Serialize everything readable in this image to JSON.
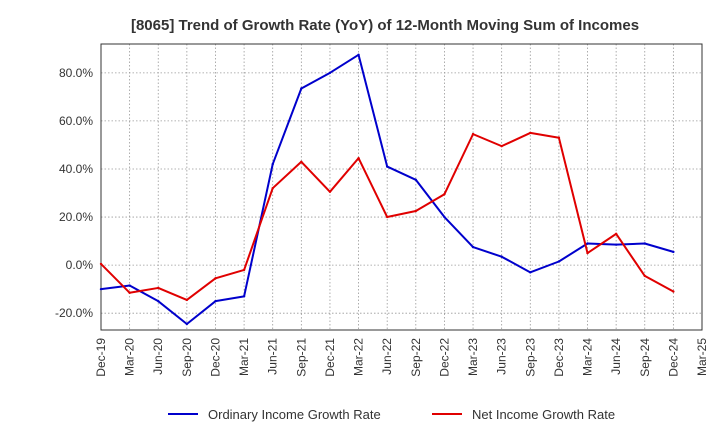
{
  "chart_data": {
    "type": "line",
    "title": "[8065]  Trend of Growth Rate (YoY) of 12-Month Moving Sum of Incomes",
    "xlabel": "",
    "ylabel": "",
    "x": [
      "Dec-19",
      "Mar-20",
      "Jun-20",
      "Sep-20",
      "Dec-20",
      "Mar-21",
      "Jun-21",
      "Sep-21",
      "Dec-21",
      "Mar-22",
      "Jun-22",
      "Sep-22",
      "Dec-22",
      "Mar-23",
      "Jun-23",
      "Sep-23",
      "Dec-23",
      "Mar-24",
      "Jun-24",
      "Sep-24",
      "Dec-24",
      "Mar-25"
    ],
    "yticks": [
      -20,
      0,
      20,
      40,
      60,
      80
    ],
    "ytick_labels": [
      "-20.0%",
      "0.0%",
      "20.0%",
      "40.0%",
      "60.0%",
      "80.0%"
    ],
    "ylim": [
      -27,
      92
    ],
    "grid": true,
    "legend_position": "bottom",
    "series": [
      {
        "name": "Ordinary Income Growth Rate",
        "color": "#0000cc",
        "values": [
          -10,
          -8.5,
          -15,
          -24.5,
          -15,
          -13,
          42,
          73.5,
          80,
          87.5,
          41,
          35.5,
          20,
          7.5,
          3.5,
          -3,
          1.5,
          9,
          8.5,
          9,
          5.5,
          null
        ]
      },
      {
        "name": "Net Income Growth Rate",
        "color": "#e00000",
        "values": [
          0.5,
          -11.5,
          -9.5,
          -14.5,
          -5.5,
          -2,
          32,
          43,
          30.5,
          44.5,
          20,
          22.5,
          29.5,
          54.5,
          49.5,
          55,
          53,
          5,
          13,
          -4.5,
          -11,
          null
        ]
      }
    ]
  }
}
